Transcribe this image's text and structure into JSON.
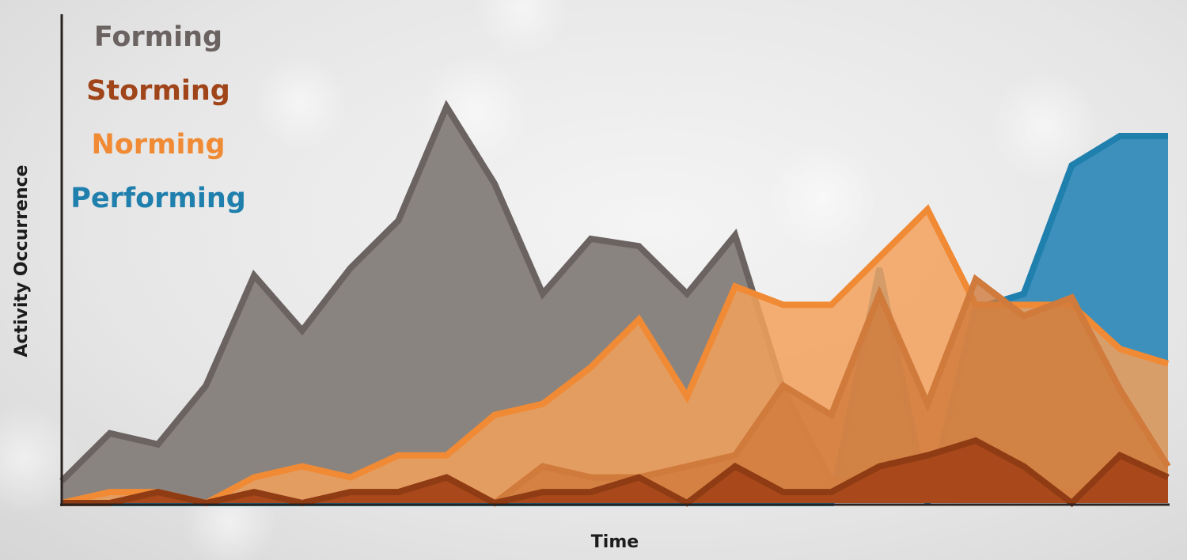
{
  "chart_data": {
    "type": "area",
    "xlabel": "Time",
    "ylabel": "Activity Occurrence",
    "x": [
      0,
      1,
      2,
      3,
      4,
      5,
      6,
      7,
      8,
      9,
      10,
      11,
      12,
      13,
      14,
      15,
      16,
      17,
      18,
      19,
      20,
      21,
      22,
      23
    ],
    "xlim": [
      0,
      23
    ],
    "ylim": [
      0,
      100
    ],
    "grid": false,
    "legend_position": "top-left",
    "series": [
      {
        "name": "Forming",
        "color": "#6b6361",
        "fill": "#8a8480",
        "values": [
          6,
          19,
          16,
          32,
          62,
          47,
          64,
          77,
          108,
          87,
          57,
          72,
          70,
          57,
          73,
          31,
          6,
          6,
          3,
          6,
          3,
          3,
          3,
          3
        ]
      },
      {
        "name": "Norming",
        "color": "#f08a34",
        "fill": "#f3a15c",
        "values": [
          0,
          3,
          3,
          0,
          7,
          10,
          7,
          13,
          13,
          24,
          27,
          37,
          50,
          29,
          59,
          54,
          54,
          67,
          80,
          54,
          54,
          54,
          42,
          38
        ]
      },
      {
        "name": "Storming",
        "color": "#8f3c14",
        "fill": "#d07a3c",
        "values": [
          0,
          0,
          3,
          0,
          3,
          0,
          3,
          3,
          7,
          0,
          10,
          7,
          7,
          10,
          13,
          32,
          24,
          57,
          27,
          61,
          51,
          56,
          31,
          10
        ]
      },
      {
        "name": "Performing",
        "color": "#1f7fad",
        "fill": "#3c90bb",
        "values": [
          0,
          0,
          0,
          0,
          0,
          0,
          0,
          0,
          0,
          -1,
          0,
          0,
          0,
          0,
          0,
          0,
          0,
          64,
          0,
          0,
          0,
          0,
          0,
          0
        ]
      }
    ],
    "performing_rise": [
      0,
      0,
      0,
      0,
      0,
      0,
      0,
      0,
      0,
      0,
      0,
      0,
      0,
      0,
      0,
      0,
      0,
      0,
      0,
      53,
      57,
      92,
      100,
      100
    ],
    "storming_line": [
      0,
      0,
      3,
      0,
      3,
      0,
      3,
      3,
      7,
      0,
      3,
      3,
      7,
      0,
      10,
      3,
      3,
      10,
      13,
      17,
      10,
      0,
      13,
      7
    ]
  }
}
